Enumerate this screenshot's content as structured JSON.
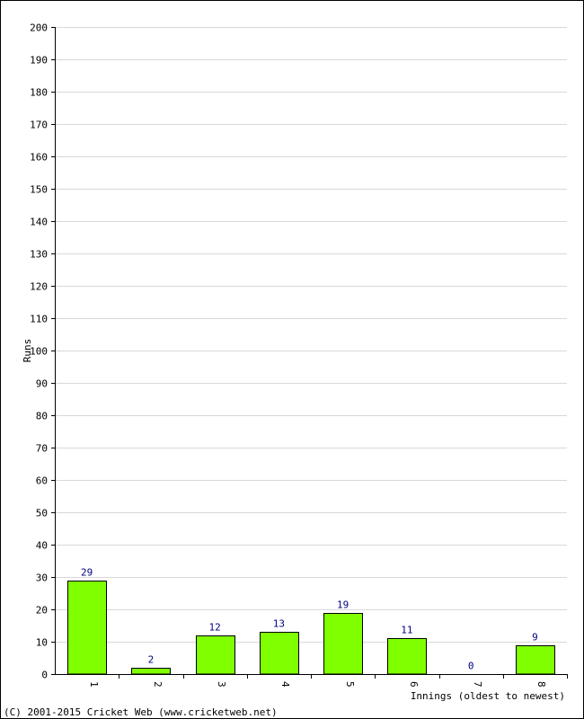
{
  "chart_data": {
    "type": "bar",
    "categories": [
      "1",
      "2",
      "3",
      "4",
      "5",
      "6",
      "7",
      "8"
    ],
    "values": [
      29,
      2,
      12,
      13,
      19,
      11,
      0,
      9
    ],
    "title": "",
    "xlabel": "Innings (oldest to newest)",
    "ylabel": "Runs",
    "ylim": [
      0,
      200
    ],
    "ytick_step": 10,
    "grid": true,
    "bar_color": "#80ff00",
    "bar_edge_color": "#000000",
    "data_label_color": "#000080",
    "grid_color": "#d8d8d8"
  },
  "footer": {
    "copyright": "(C) 2001-2015 Cricket Web (www.cricketweb.net)"
  }
}
